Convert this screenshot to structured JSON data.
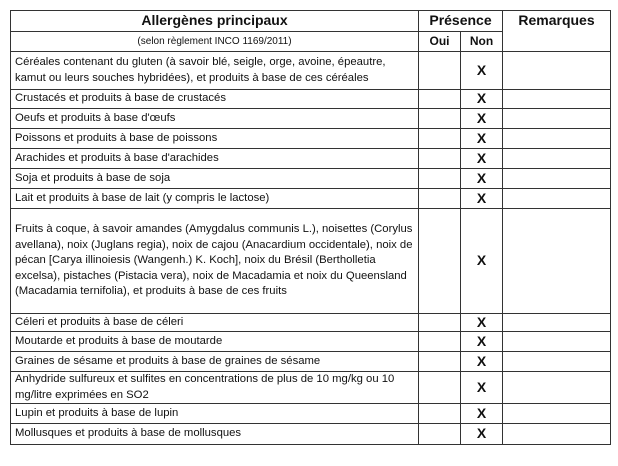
{
  "header": {
    "title": "Allergènes principaux",
    "subtitle": "(selon règlement INCO 1169/2011)",
    "presence": "Présence",
    "remarks": "Remarques",
    "yes": "Oui",
    "no": "Non"
  },
  "rows": [
    {
      "label": "Céréales contenant du gluten (à savoir blé, seigle, orge, avoine, épeautre, kamut ou leurs souches hybridées), et produits à base de ces céréales",
      "oui": "",
      "non": "X",
      "remarks": ""
    },
    {
      "label": "Crustacés et produits à base de crustacés",
      "oui": "",
      "non": "X",
      "remarks": ""
    },
    {
      "label": "Oeufs et produits à base d'œufs",
      "oui": "",
      "non": "X",
      "remarks": ""
    },
    {
      "label": "Poissons et produits à base de poissons",
      "oui": "",
      "non": "X",
      "remarks": ""
    },
    {
      "label": "Arachides et produits à base d'arachides",
      "oui": "",
      "non": "X",
      "remarks": ""
    },
    {
      "label": "Soja et produits à base de soja",
      "oui": "",
      "non": "X",
      "remarks": ""
    },
    {
      "label": "Lait et produits à base de lait (y compris le lactose)",
      "oui": "",
      "non": "X",
      "remarks": ""
    },
    {
      "label": "Fruits à coque, à savoir amandes (Amygdalus communis L.), noisettes (Corylus avellana), noix (Juglans regia), noix de cajou (Anacardium occidentale), noix de pécan [Carya illinoiesis (Wangenh.) K. Koch], noix du Brésil (Bertholletia excelsa), pistaches (Pistacia vera), noix de Macadamia et noix du Queensland (Macadamia ternifolia), et produits à base de ces fruits",
      "oui": "",
      "non": "X",
      "remarks": ""
    },
    {
      "label": "Céleri et produits à base de céleri",
      "oui": "",
      "non": "X",
      "remarks": ""
    },
    {
      "label": "Moutarde et produits à base de moutarde",
      "oui": "",
      "non": "X",
      "remarks": ""
    },
    {
      "label": "Graines de sésame et produits à base de graines de sésame",
      "oui": "",
      "non": "X",
      "remarks": ""
    },
    {
      "label": "Anhydride sulfureux et sulfites en concentrations de plus de 10 mg/kg ou 10 mg/litre exprimées en SO2",
      "oui": "",
      "non": "X",
      "remarks": ""
    },
    {
      "label": "Lupin et produits à base de lupin",
      "oui": "",
      "non": "X",
      "remarks": ""
    },
    {
      "label": "Mollusques et produits à base de mollusques",
      "oui": "",
      "non": "X",
      "remarks": ""
    }
  ]
}
